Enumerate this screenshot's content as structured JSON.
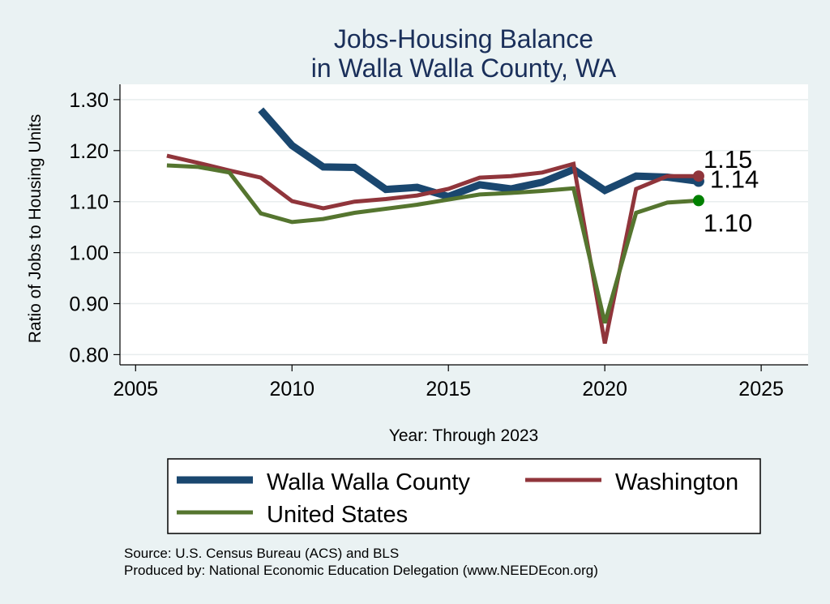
{
  "chart_data": {
    "type": "line",
    "title": [
      "Jobs-Housing Balance",
      "in Walla Walla County, WA"
    ],
    "xlabel": "Year: Through 2023",
    "ylabel": "Ratio of Jobs to Housing Units",
    "xlim": [
      2004.5,
      2026.5
    ],
    "ylim": [
      0.78,
      1.33
    ],
    "xticks": [
      2005,
      2010,
      2015,
      2020,
      2025
    ],
    "yticks": [
      0.8,
      0.9,
      1.0,
      1.1,
      1.2,
      1.3
    ],
    "ytick_labels": [
      "0.80",
      "0.90",
      "1.00",
      "1.10",
      "1.20",
      "1.30"
    ],
    "grid": true,
    "legend_position": "bottom",
    "series": [
      {
        "name": "Walla Walla County",
        "color": "#1a476f",
        "x": [
          2009,
          2010,
          2011,
          2012,
          2013,
          2014,
          2015,
          2016,
          2017,
          2018,
          2019,
          2020,
          2021,
          2022,
          2023
        ],
        "values": [
          1.28,
          1.21,
          1.168,
          1.167,
          1.124,
          1.128,
          1.11,
          1.133,
          1.125,
          1.138,
          1.163,
          1.122,
          1.15,
          1.148,
          1.14
        ],
        "end_label": "1.14"
      },
      {
        "name": "Washington",
        "color": "#90353b",
        "x": [
          2006,
          2007,
          2008,
          2009,
          2010,
          2011,
          2012,
          2013,
          2014,
          2015,
          2016,
          2017,
          2018,
          2019,
          2020,
          2021,
          2022,
          2023
        ],
        "values": [
          1.19,
          1.176,
          1.161,
          1.147,
          1.101,
          1.087,
          1.1,
          1.105,
          1.112,
          1.125,
          1.147,
          1.15,
          1.157,
          1.174,
          0.822,
          1.125,
          1.15,
          1.15
        ],
        "end_label": "1.15"
      },
      {
        "name": "United States",
        "color": "#55752f",
        "x": [
          2006,
          2007,
          2008,
          2009,
          2010,
          2011,
          2012,
          2013,
          2014,
          2015,
          2016,
          2017,
          2018,
          2019,
          2020,
          2021,
          2022,
          2023
        ],
        "values": [
          1.171,
          1.168,
          1.157,
          1.077,
          1.06,
          1.066,
          1.078,
          1.086,
          1.094,
          1.104,
          1.114,
          1.117,
          1.121,
          1.126,
          0.862,
          1.078,
          1.098,
          1.102
        ],
        "end_label": "1.10"
      }
    ],
    "source_lines": [
      "Source: U.S. Census Bureau (ACS) and BLS",
      "Produced by: National Economic Education Delegation (www.NEEDEcon.org)"
    ]
  }
}
